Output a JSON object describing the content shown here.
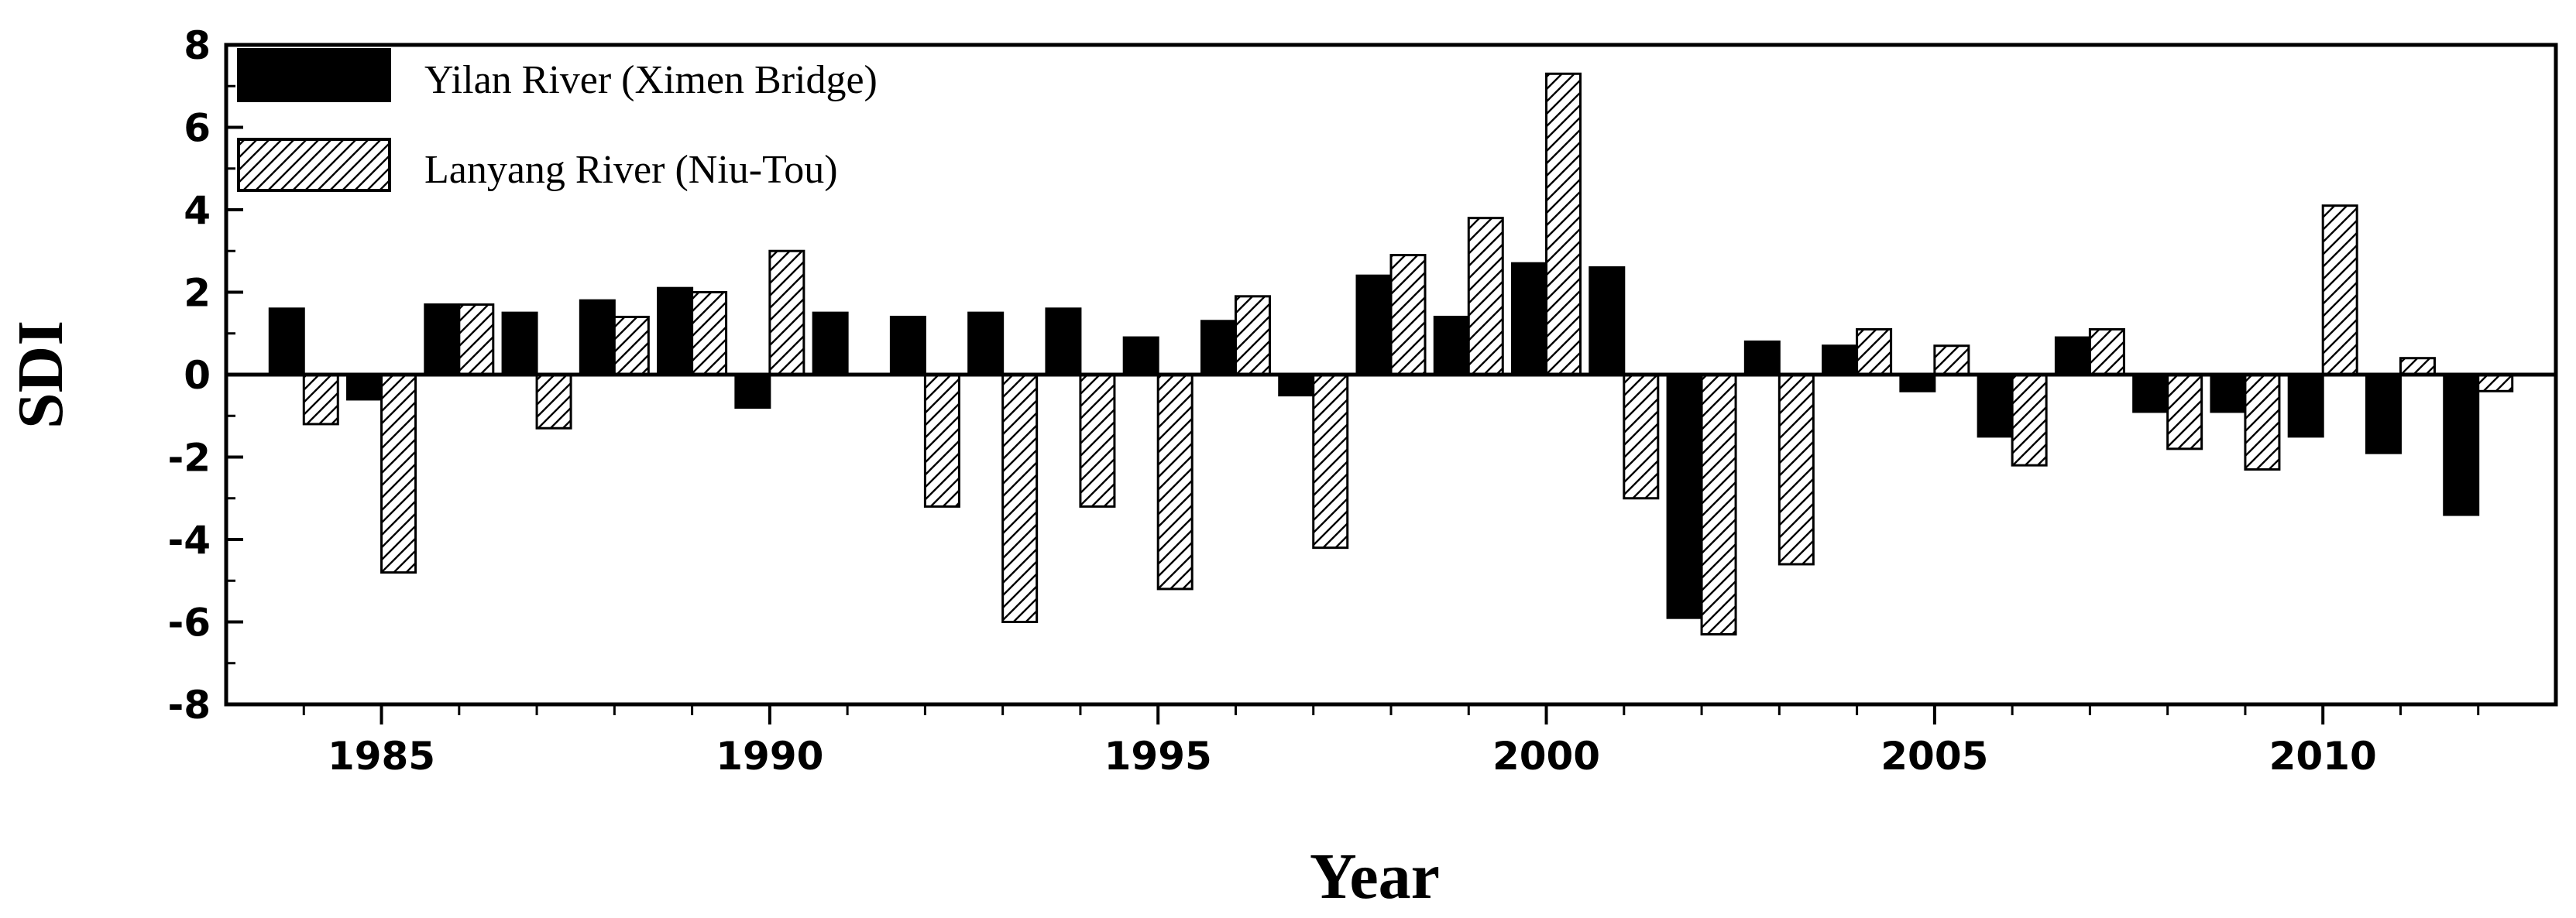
{
  "chart_data": {
    "type": "bar",
    "xlabel": "Year",
    "ylabel": "SDI",
    "xlim": [
      1983,
      2013
    ],
    "ylim": [
      -8,
      8
    ],
    "x_ticks": [
      1985,
      1990,
      1995,
      2000,
      2005,
      2010
    ],
    "y_ticks": [
      -8,
      -6,
      -4,
      -2,
      0,
      2,
      4,
      6,
      8
    ],
    "grid": false,
    "legend_position": "top-left",
    "categories": [
      1984,
      1985,
      1986,
      1987,
      1988,
      1989,
      1990,
      1991,
      1992,
      1993,
      1994,
      1995,
      1996,
      1997,
      1998,
      1999,
      2000,
      2001,
      2002,
      2003,
      2004,
      2005,
      2006,
      2007,
      2008,
      2009,
      2010,
      2011,
      2012
    ],
    "series": [
      {
        "name": "Yilan River (Ximen Bridge)",
        "pattern": "solid",
        "color": "#000000",
        "values": [
          1.6,
          -0.6,
          1.7,
          1.5,
          1.8,
          2.1,
          -0.8,
          1.5,
          1.4,
          1.5,
          1.6,
          0.9,
          1.3,
          -0.5,
          2.4,
          1.4,
          2.7,
          2.6,
          -5.9,
          0.8,
          0.7,
          -0.4,
          -1.5,
          0.9,
          -0.9,
          -0.9,
          -1.5,
          -1.9,
          -3.4
        ]
      },
      {
        "name": "Lanyang River (Niu-Tou)",
        "pattern": "hatched",
        "color": "#000000",
        "values": [
          -1.2,
          -4.8,
          1.7,
          -1.3,
          1.4,
          2.0,
          3.0,
          0.0,
          -3.2,
          -6.0,
          -3.2,
          -5.2,
          1.9,
          -4.2,
          2.9,
          3.8,
          7.3,
          -3.0,
          -6.3,
          -4.6,
          1.1,
          0.7,
          -2.2,
          1.1,
          -1.8,
          -2.3,
          4.1,
          0.4,
          -0.4
        ]
      }
    ]
  }
}
